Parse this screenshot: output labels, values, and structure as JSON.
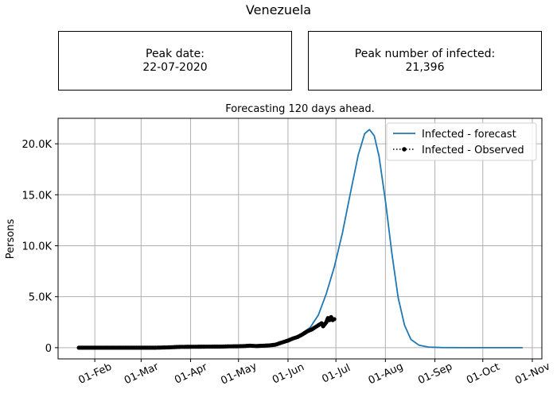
{
  "figure": {
    "title": "Venezuela",
    "peak_date_label": "Peak date:",
    "peak_date_value": "22-07-2020",
    "peak_infected_label": "Peak number of infected:",
    "peak_infected_value": "21,396"
  },
  "chart_data": {
    "type": "line",
    "title": "Forecasting 120 days ahead.",
    "xlabel": "",
    "ylabel": "Persons",
    "x_type": "date",
    "xlim": [
      "2020-01-09",
      "2020-11-07"
    ],
    "ylim": [
      -1100,
      22500
    ],
    "x_ticks": [
      "2020-02-01",
      "2020-03-01",
      "2020-04-01",
      "2020-05-01",
      "2020-06-01",
      "2020-07-01",
      "2020-08-01",
      "2020-09-01",
      "2020-10-01",
      "2020-11-01"
    ],
    "x_tick_labels": [
      "01-Feb",
      "01-Mar",
      "01-Apr",
      "01-May",
      "01-Jun",
      "01-Jul",
      "01-Aug",
      "01-Sep",
      "01-Oct",
      "01-Nov"
    ],
    "y_ticks": [
      0,
      5000,
      10000,
      15000,
      20000
    ],
    "y_tick_labels": [
      "0",
      "5.0K",
      "10.0K",
      "15.0K",
      "20.0K"
    ],
    "grid": true,
    "legend_position": "top-right",
    "series": [
      {
        "name": "Infected - forecast",
        "color": "#1f77b4",
        "style": "solid",
        "points": [
          [
            "2020-01-22",
            0
          ],
          [
            "2020-02-15",
            0
          ],
          [
            "2020-03-15",
            5
          ],
          [
            "2020-04-15",
            30
          ],
          [
            "2020-05-01",
            80
          ],
          [
            "2020-05-15",
            200
          ],
          [
            "2020-05-25",
            400
          ],
          [
            "2020-06-01",
            700
          ],
          [
            "2020-06-08",
            1200
          ],
          [
            "2020-06-15",
            2000
          ],
          [
            "2020-06-20",
            3200
          ],
          [
            "2020-06-25",
            5300
          ],
          [
            "2020-06-30",
            7900
          ],
          [
            "2020-07-05",
            11200
          ],
          [
            "2020-07-10",
            15100
          ],
          [
            "2020-07-15",
            18900
          ],
          [
            "2020-07-19",
            21000
          ],
          [
            "2020-07-22",
            21396
          ],
          [
            "2020-07-25",
            20800
          ],
          [
            "2020-07-28",
            18800
          ],
          [
            "2020-08-01",
            14400
          ],
          [
            "2020-08-05",
            9300
          ],
          [
            "2020-08-09",
            4900
          ],
          [
            "2020-08-13",
            2200
          ],
          [
            "2020-08-17",
            800
          ],
          [
            "2020-08-22",
            250
          ],
          [
            "2020-08-28",
            60
          ],
          [
            "2020-09-05",
            10
          ],
          [
            "2020-09-20",
            0
          ],
          [
            "2020-10-26",
            0
          ]
        ]
      },
      {
        "name": "Infected - Observed",
        "color": "#000000",
        "style": "dotted-markers",
        "points": [
          [
            "2020-01-22",
            0
          ],
          [
            "2020-02-01",
            0
          ],
          [
            "2020-02-10",
            0
          ],
          [
            "2020-02-20",
            0
          ],
          [
            "2020-03-01",
            0
          ],
          [
            "2020-03-10",
            0
          ],
          [
            "2020-03-18",
            30
          ],
          [
            "2020-03-25",
            80
          ],
          [
            "2020-04-01",
            90
          ],
          [
            "2020-04-10",
            100
          ],
          [
            "2020-04-20",
            110
          ],
          [
            "2020-04-25",
            130
          ],
          [
            "2020-05-01",
            140
          ],
          [
            "2020-05-05",
            160
          ],
          [
            "2020-05-08",
            200
          ],
          [
            "2020-05-12",
            160
          ],
          [
            "2020-05-16",
            190
          ],
          [
            "2020-05-20",
            220
          ],
          [
            "2020-05-24",
            290
          ],
          [
            "2020-05-28",
            500
          ],
          [
            "2020-06-01",
            700
          ],
          [
            "2020-06-04",
            900
          ],
          [
            "2020-06-07",
            1050
          ],
          [
            "2020-06-10",
            1300
          ],
          [
            "2020-06-13",
            1600
          ],
          [
            "2020-06-16",
            1800
          ],
          [
            "2020-06-18",
            2000
          ],
          [
            "2020-06-20",
            2200
          ],
          [
            "2020-06-22",
            2400
          ],
          [
            "2020-06-23",
            2100
          ],
          [
            "2020-06-25",
            2500
          ],
          [
            "2020-06-26",
            2900
          ],
          [
            "2020-06-27",
            2700
          ],
          [
            "2020-06-28",
            3000
          ],
          [
            "2020-06-29",
            2700
          ],
          [
            "2020-06-30",
            2800
          ]
        ]
      }
    ]
  }
}
